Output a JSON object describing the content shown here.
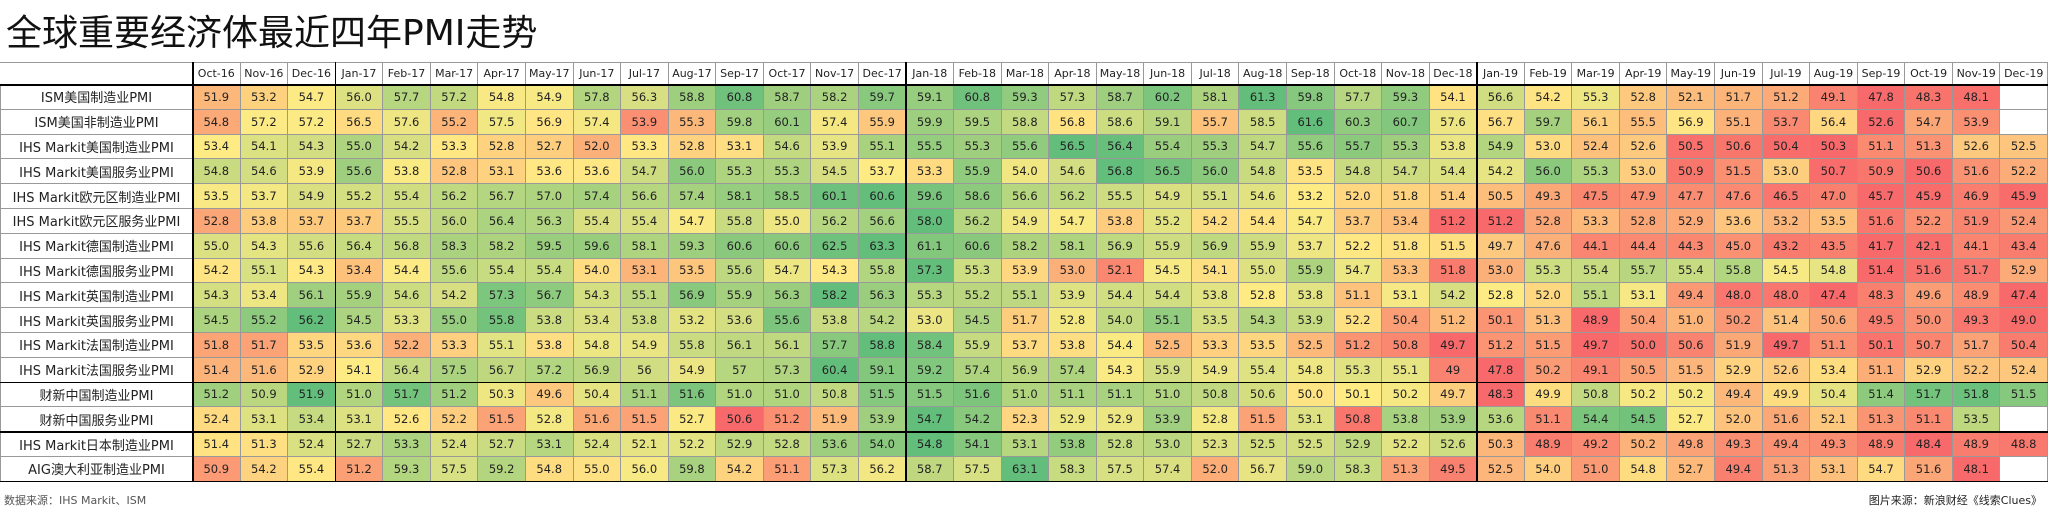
{
  "header": {
    "title": "全球重要经济体最近四年PMI走势"
  },
  "table": {
    "columns": [
      "Oct-16",
      "Nov-16",
      "Dec-16",
      "Jan-17",
      "Feb-17",
      "Mar-17",
      "Apr-17",
      "May-17",
      "Jun-17",
      "Jul-17",
      "Aug-17",
      "Sep-17",
      "Oct-17",
      "Nov-17",
      "Dec-17",
      "Jan-18",
      "Feb-18",
      "Mar-18",
      "Apr-18",
      "May-18",
      "Jun-18",
      "Jul-18",
      "Aug-18",
      "Sep-18",
      "Oct-18",
      "Nov-18",
      "Dec-18",
      "Jan-19",
      "Feb-19",
      "Mar-19",
      "Apr-19",
      "May-19",
      "Jun-19",
      "Jul-19",
      "Aug-19",
      "Sep-19",
      "Oct-19",
      "Nov-19",
      "Dec-19"
    ],
    "rows": [
      {
        "label": "ISM美国制造业PMI",
        "values": [
          "51.9",
          "53.2",
          "54.7",
          "56.0",
          "57.7",
          "57.2",
          "54.8",
          "54.9",
          "57.8",
          "56.3",
          "58.8",
          "60.8",
          "58.7",
          "58.2",
          "59.7",
          "59.1",
          "60.8",
          "59.3",
          "57.3",
          "58.7",
          "60.2",
          "58.1",
          "61.3",
          "59.8",
          "57.7",
          "59.3",
          "54.1",
          "56.6",
          "54.2",
          "55.3",
          "52.8",
          "52.1",
          "51.7",
          "51.2",
          "49.1",
          "47.8",
          "48.3",
          "48.1",
          null
        ]
      },
      {
        "label": "ISM美国非制造业PMI",
        "values": [
          "54.8",
          "57.2",
          "57.2",
          "56.5",
          "57.6",
          "55.2",
          "57.5",
          "56.9",
          "57.4",
          "53.9",
          "55.3",
          "59.8",
          "60.1",
          "57.4",
          "55.9",
          "59.9",
          "59.5",
          "58.8",
          "56.8",
          "58.6",
          "59.1",
          "55.7",
          "58.5",
          "61.6",
          "60.3",
          "60.7",
          "57.6",
          "56.7",
          "59.7",
          "56.1",
          "55.5",
          "56.9",
          "55.1",
          "53.7",
          "56.4",
          "52.6",
          "54.7",
          "53.9",
          null
        ]
      },
      {
        "label": "IHS Markit美国制造业PMI",
        "values": [
          "53.4",
          "54.1",
          "54.3",
          "55.0",
          "54.2",
          "53.3",
          "52.8",
          "52.7",
          "52.0",
          "53.3",
          "52.8",
          "53.1",
          "54.6",
          "53.9",
          "55.1",
          "55.5",
          "55.3",
          "55.6",
          "56.5",
          "56.4",
          "55.4",
          "55.3",
          "54.7",
          "55.6",
          "55.7",
          "55.3",
          "53.8",
          "54.9",
          "53.0",
          "52.4",
          "52.6",
          "50.5",
          "50.6",
          "50.4",
          "50.3",
          "51.1",
          "51.3",
          "52.6",
          "52.5"
        ]
      },
      {
        "label": "IHS Markit美国服务业PMI",
        "values": [
          "54.8",
          "54.6",
          "53.9",
          "55.6",
          "53.8",
          "52.8",
          "53.1",
          "53.6",
          "53.6",
          "54.7",
          "56.0",
          "55.3",
          "55.3",
          "54.5",
          "53.7",
          "53.3",
          "55.9",
          "54.0",
          "54.6",
          "56.8",
          "56.5",
          "56.0",
          "54.8",
          "53.5",
          "54.8",
          "54.7",
          "54.4",
          "54.2",
          "56.0",
          "55.3",
          "53.0",
          "50.9",
          "51.5",
          "53.0",
          "50.7",
          "50.9",
          "50.6",
          "51.6",
          "52.2"
        ]
      },
      {
        "label": "IHS Markit欧元区制造业PMI",
        "values": [
          "53.5",
          "53.7",
          "54.9",
          "55.2",
          "55.4",
          "56.2",
          "56.7",
          "57.0",
          "57.4",
          "56.6",
          "57.4",
          "58.1",
          "58.5",
          "60.1",
          "60.6",
          "59.6",
          "58.6",
          "56.6",
          "56.2",
          "55.5",
          "54.9",
          "55.1",
          "54.6",
          "53.2",
          "52.0",
          "51.8",
          "51.4",
          "50.5",
          "49.3",
          "47.5",
          "47.9",
          "47.7",
          "47.6",
          "46.5",
          "47.0",
          "45.7",
          "45.9",
          "46.9",
          "45.9"
        ]
      },
      {
        "label": "IHS Markit欧元区服务业PMI",
        "values": [
          "52.8",
          "53.8",
          "53.7",
          "53.7",
          "55.5",
          "56.0",
          "56.4",
          "56.3",
          "55.4",
          "55.4",
          "54.7",
          "55.8",
          "55.0",
          "56.2",
          "56.6",
          "58.0",
          "56.2",
          "54.9",
          "54.7",
          "53.8",
          "55.2",
          "54.2",
          "54.4",
          "54.7",
          "53.7",
          "53.4",
          "51.2",
          "51.2",
          "52.8",
          "53.3",
          "52.8",
          "52.9",
          "53.6",
          "53.2",
          "53.5",
          "51.6",
          "52.2",
          "51.9",
          "52.4"
        ]
      },
      {
        "label": "IHS Markit德国制造业PMI",
        "values": [
          "55.0",
          "54.3",
          "55.6",
          "56.4",
          "56.8",
          "58.3",
          "58.2",
          "59.5",
          "59.6",
          "58.1",
          "59.3",
          "60.6",
          "60.6",
          "62.5",
          "63.3",
          "61.1",
          "60.6",
          "58.2",
          "58.1",
          "56.9",
          "55.9",
          "56.9",
          "55.9",
          "53.7",
          "52.2",
          "51.8",
          "51.5",
          "49.7",
          "47.6",
          "44.1",
          "44.4",
          "44.3",
          "45.0",
          "43.2",
          "43.5",
          "41.7",
          "42.1",
          "44.1",
          "43.4"
        ]
      },
      {
        "label": "IHS Markit德国服务业PMI",
        "values": [
          "54.2",
          "55.1",
          "54.3",
          "53.4",
          "54.4",
          "55.6",
          "55.4",
          "55.4",
          "54.0",
          "53.1",
          "53.5",
          "55.6",
          "54.7",
          "54.3",
          "55.8",
          "57.3",
          "55.3",
          "53.9",
          "53.0",
          "52.1",
          "54.5",
          "54.1",
          "55.0",
          "55.9",
          "54.7",
          "53.3",
          "51.8",
          "53.0",
          "55.3",
          "55.4",
          "55.7",
          "55.4",
          "55.8",
          "54.5",
          "54.8",
          "51.4",
          "51.6",
          "51.7",
          "52.9"
        ]
      },
      {
        "label": "IHS Markit英国制造业PMI",
        "values": [
          "54.3",
          "53.4",
          "56.1",
          "55.9",
          "54.6",
          "54.2",
          "57.3",
          "56.7",
          "54.3",
          "55.1",
          "56.9",
          "55.9",
          "56.3",
          "58.2",
          "56.3",
          "55.3",
          "55.2",
          "55.1",
          "53.9",
          "54.4",
          "54.4",
          "53.8",
          "52.8",
          "53.8",
          "51.1",
          "53.1",
          "54.2",
          "52.8",
          "52.0",
          "55.1",
          "53.1",
          "49.4",
          "48.0",
          "48.0",
          "47.4",
          "48.3",
          "49.6",
          "48.9",
          "47.4"
        ]
      },
      {
        "label": "IHS Markit英国服务业PMI",
        "values": [
          "54.5",
          "55.2",
          "56.2",
          "54.5",
          "53.3",
          "55.0",
          "55.8",
          "53.8",
          "53.4",
          "53.8",
          "53.2",
          "53.6",
          "55.6",
          "53.8",
          "54.2",
          "53.0",
          "54.5",
          "51.7",
          "52.8",
          "54.0",
          "55.1",
          "53.5",
          "54.3",
          "53.9",
          "52.2",
          "50.4",
          "51.2",
          "50.1",
          "51.3",
          "48.9",
          "50.4",
          "51.0",
          "50.2",
          "51.4",
          "50.6",
          "49.5",
          "50.0",
          "49.3",
          "49.0"
        ]
      },
      {
        "label": "IHS Markit法国制造业PMI",
        "values": [
          "51.8",
          "51.7",
          "53.5",
          "53.6",
          "52.2",
          "53.3",
          "55.1",
          "53.8",
          "54.8",
          "54.9",
          "55.8",
          "56.1",
          "56.1",
          "57.7",
          "58.8",
          "58.4",
          "55.9",
          "53.7",
          "53.8",
          "54.4",
          "52.5",
          "53.3",
          "53.5",
          "52.5",
          "51.2",
          "50.8",
          "49.7",
          "51.2",
          "51.5",
          "49.7",
          "50.0",
          "50.6",
          "51.9",
          "49.7",
          "51.1",
          "50.1",
          "50.7",
          "51.7",
          "50.4"
        ]
      },
      {
        "label": "IHS Markit法国服务业PMI",
        "values": [
          "51.4",
          "51.6",
          "52.9",
          "54.1",
          "56.4",
          "57.5",
          "56.7",
          "57.2",
          "56.9",
          "56",
          "54.9",
          "57",
          "57.3",
          "60.4",
          "59.1",
          "59.2",
          "57.4",
          "56.9",
          "57.4",
          "54.3",
          "55.9",
          "54.9",
          "55.4",
          "54.8",
          "55.3",
          "55.1",
          "49",
          "47.8",
          "50.2",
          "49.1",
          "50.5",
          "51.5",
          "52.9",
          "52.6",
          "53.4",
          "51.1",
          "52.9",
          "52.2",
          "52.4"
        ]
      },
      {
        "label": "财新中国制造业PMI",
        "values": [
          "51.2",
          "50.9",
          "51.9",
          "51.0",
          "51.7",
          "51.2",
          "50.3",
          "49.6",
          "50.4",
          "51.1",
          "51.6",
          "51.0",
          "51.0",
          "50.8",
          "51.5",
          "51.5",
          "51.6",
          "51.0",
          "51.1",
          "51.1",
          "51.0",
          "50.8",
          "50.6",
          "50.0",
          "50.1",
          "50.2",
          "49.7",
          "48.3",
          "49.9",
          "50.8",
          "50.2",
          "50.2",
          "49.4",
          "49.9",
          "50.4",
          "51.4",
          "51.7",
          "51.8",
          "51.5"
        ]
      },
      {
        "label": "财新中国服务业PMI",
        "values": [
          "52.4",
          "53.1",
          "53.4",
          "53.1",
          "52.6",
          "52.2",
          "51.5",
          "52.8",
          "51.6",
          "51.5",
          "52.7",
          "50.6",
          "51.2",
          "51.9",
          "53.9",
          "54.7",
          "54.2",
          "52.3",
          "52.9",
          "52.9",
          "53.9",
          "52.8",
          "51.5",
          "53.1",
          "50.8",
          "53.8",
          "53.9",
          "53.6",
          "51.1",
          "54.4",
          "54.5",
          "52.7",
          "52.0",
          "51.6",
          "52.1",
          "51.3",
          "51.1",
          "53.5",
          null
        ]
      },
      {
        "label": "IHS Markit日本制造业PMI",
        "values": [
          "51.4",
          "51.3",
          "52.4",
          "52.7",
          "53.3",
          "52.4",
          "52.7",
          "53.1",
          "52.4",
          "52.1",
          "52.2",
          "52.9",
          "52.8",
          "53.6",
          "54.0",
          "54.8",
          "54.1",
          "53.1",
          "53.8",
          "52.8",
          "53.0",
          "52.3",
          "52.5",
          "52.5",
          "52.9",
          "52.2",
          "52.6",
          "50.3",
          "48.9",
          "49.2",
          "50.2",
          "49.8",
          "49.3",
          "49.4",
          "49.3",
          "48.9",
          "48.4",
          "48.9",
          "48.8"
        ]
      },
      {
        "label": "AIG澳大利亚制造业PMI",
        "values": [
          "50.9",
          "54.2",
          "55.4",
          "51.2",
          "59.3",
          "57.5",
          "59.2",
          "54.8",
          "55.0",
          "56.0",
          "59.8",
          "54.2",
          "51.1",
          "57.3",
          "56.2",
          "58.7",
          "57.5",
          "63.1",
          "58.3",
          "57.5",
          "57.4",
          "52.0",
          "56.7",
          "59.0",
          "58.3",
          "51.3",
          "49.5",
          "52.5",
          "54.0",
          "51.0",
          "54.8",
          "52.7",
          "49.4",
          "51.3",
          "53.1",
          "54.7",
          "51.6",
          "48.1",
          null
        ]
      }
    ]
  },
  "footer": {
    "source": "数据来源：IHS Markit、ISM",
    "credit": "图片来源：新浪财经《线索Clues》"
  }
}
